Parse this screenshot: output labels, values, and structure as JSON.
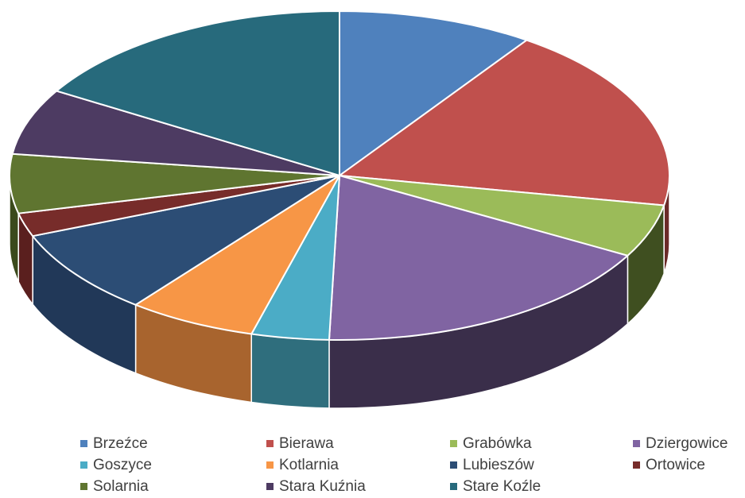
{
  "chart_data": {
    "type": "pie",
    "style": "3d-exploded-tilted",
    "title": "",
    "legend_position": "bottom",
    "categories": [
      "Brzeźce",
      "Bierawa",
      "Grabówka",
      "Dziergowice",
      "Goszyce",
      "Kotlarnia",
      "Lubieszów",
      "Ortowice",
      "Solarnia",
      "Stara Kuźnia",
      "Stare Koźle"
    ],
    "values": [
      9.6,
      18.3,
      5.2,
      17.4,
      3.8,
      6.3,
      8.4,
      2.3,
      5.8,
      6.5,
      16.4
    ],
    "unit": "percent (estimated)",
    "colors": [
      "#4f81bd",
      "#c0504d",
      "#9bbb59",
      "#8064a2",
      "#4bacc6",
      "#f79646",
      "#2c4d75",
      "#772c2a",
      "#5f7530",
      "#4d3b62",
      "#276a7c"
    ],
    "side_colors": [
      "#3a6089",
      "#6b2a28",
      "#3f4f20",
      "#3a2e4a",
      "#2f6e7d",
      "#a8642e",
      "#213858",
      "#5a1f1e",
      "#3b4a1c",
      "#332840",
      "#1a4d5a"
    ]
  }
}
